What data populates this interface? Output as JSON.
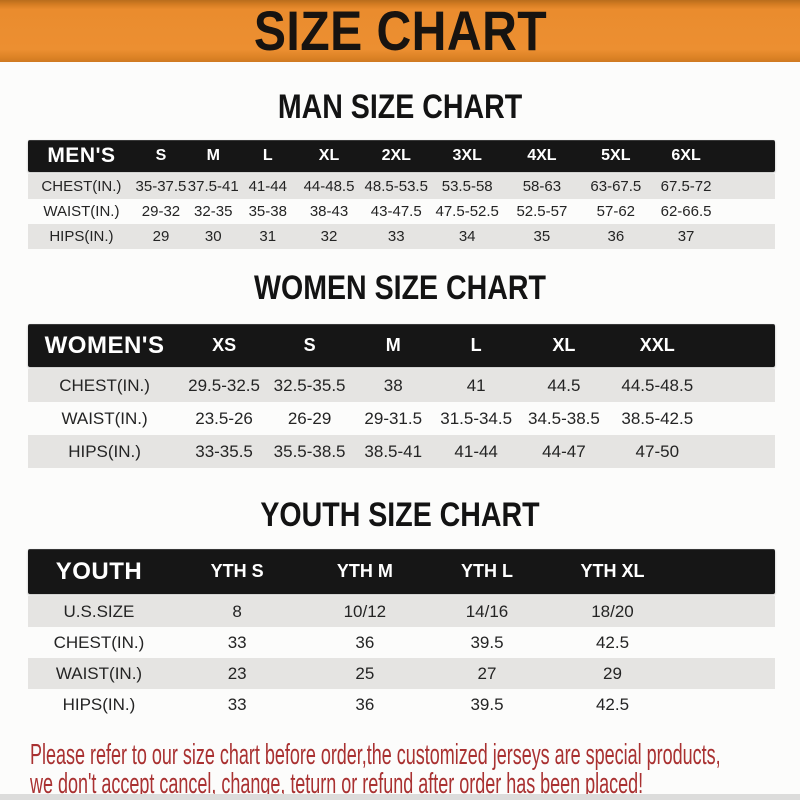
{
  "banner": {
    "title": "SIZE CHART"
  },
  "men": {
    "heading": "MAN SIZE CHART",
    "header_label": "MEN'S",
    "sizes": [
      "S",
      "M",
      "L",
      "XL",
      "2XL",
      "3XL",
      "4XL",
      "5XL",
      "6XL"
    ],
    "rows": [
      {
        "label": "CHEST(IN.)",
        "values": [
          "35-37.5",
          "37.5-41",
          "41-44",
          "44-48.5",
          "48.5-53.5",
          "53.5-58",
          "58-63",
          "63-67.5",
          "67.5-72"
        ]
      },
      {
        "label": "WAIST(IN.)",
        "values": [
          "29-32",
          "32-35",
          "35-38",
          "38-43",
          "43-47.5",
          "47.5-52.5",
          "52.5-57",
          "57-62",
          "62-66.5"
        ]
      },
      {
        "label": "HIPS(IN.)",
        "values": [
          "29",
          "30",
          "31",
          "32",
          "33",
          "34",
          "35",
          "36",
          "37"
        ]
      }
    ]
  },
  "women": {
    "heading": "WOMEN SIZE CHART",
    "header_label": "WOMEN'S",
    "sizes": [
      "XS",
      "S",
      "M",
      "L",
      "XL",
      "XXL"
    ],
    "rows": [
      {
        "label": "CHEST(IN.)",
        "values": [
          "29.5-32.5",
          "32.5-35.5",
          "38",
          "41",
          "44.5",
          "44.5-48.5"
        ]
      },
      {
        "label": "WAIST(IN.)",
        "values": [
          "23.5-26",
          "26-29",
          "29-31.5",
          "31.5-34.5",
          "34.5-38.5",
          "38.5-42.5"
        ]
      },
      {
        "label": "HIPS(IN.)",
        "values": [
          "33-35.5",
          "35.5-38.5",
          "38.5-41",
          "41-44",
          "44-47",
          "47-50"
        ]
      }
    ]
  },
  "youth": {
    "heading": "YOUTH SIZE CHART",
    "header_label": "YOUTH",
    "sizes": [
      "YTH S",
      "YTH M",
      "YTH L",
      "YTH XL"
    ],
    "rows": [
      {
        "label": "U.S.SIZE",
        "values": [
          "8",
          "10/12",
          "14/16",
          "18/20"
        ]
      },
      {
        "label": "CHEST(IN.)",
        "values": [
          "33",
          "36",
          "39.5",
          "42.5"
        ]
      },
      {
        "label": "WAIST(IN.)",
        "values": [
          "23",
          "25",
          "27",
          "29"
        ]
      },
      {
        "label": "HIPS(IN.)",
        "values": [
          "33",
          "36",
          "39.5",
          "42.5"
        ]
      }
    ]
  },
  "disclaimer": {
    "line1": "Please refer to our size chart before order,the customized jerseys are special products,",
    "line2": "we don't accept cancel, change, teturn or refund after order has been placed!"
  },
  "colors": {
    "banner_orange": "#ea8c2e",
    "header_bar_black": "#161616",
    "row_gray": "#e5e4e2",
    "row_white": "#fcfcfb",
    "disclaimer_red": "#a93131",
    "title_text": "#171310"
  }
}
